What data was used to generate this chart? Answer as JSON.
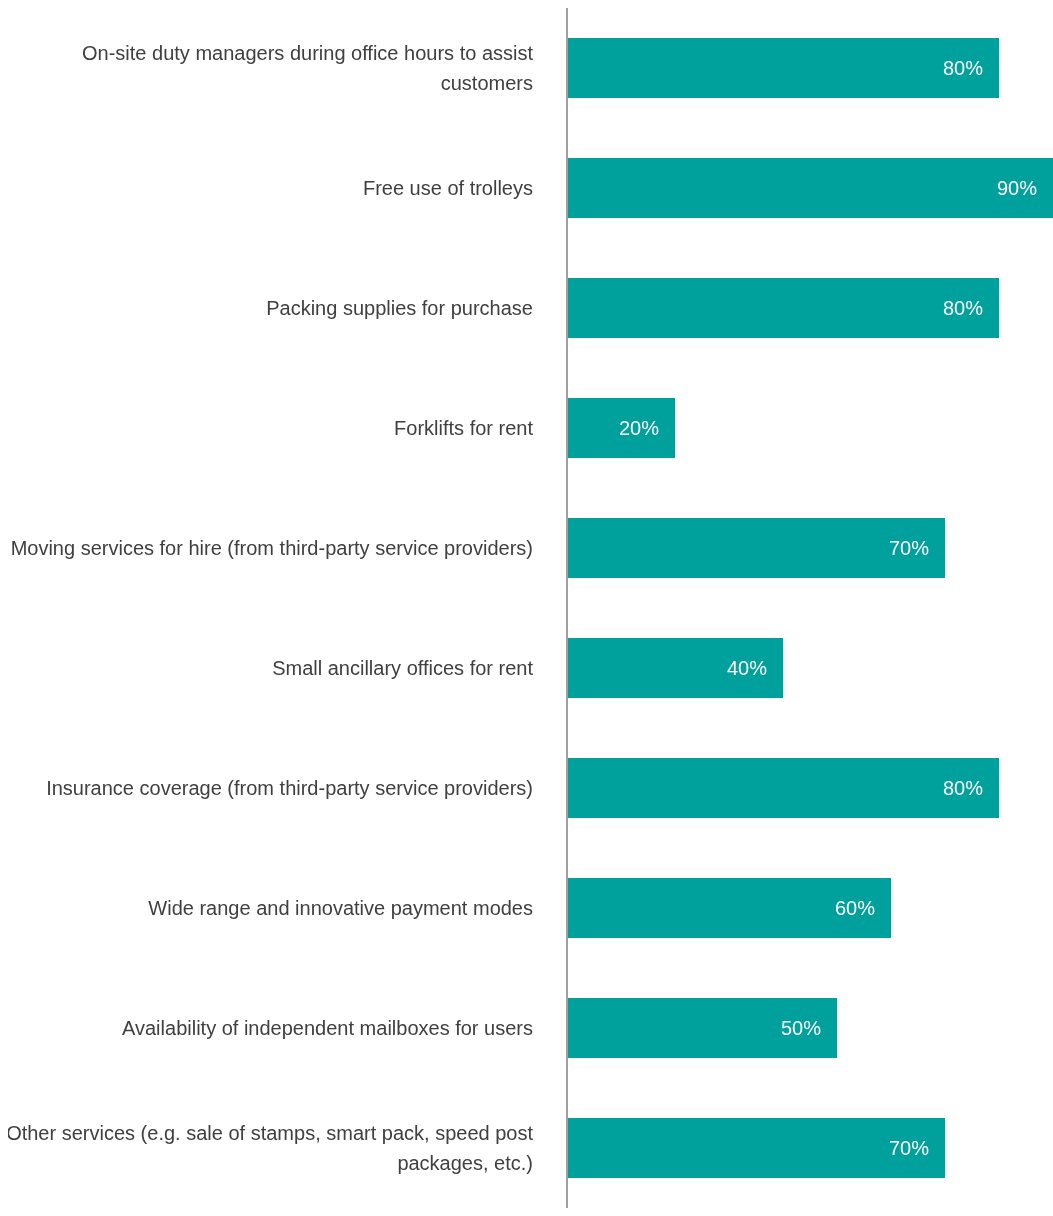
{
  "chart_data": {
    "type": "bar",
    "orientation": "horizontal",
    "categories": [
      "On-site duty managers during office hours to assist customers",
      "Free use of trolleys",
      "Packing supplies for purchase",
      "Forklifts for rent",
      "Moving services for hire (from third-party service providers)",
      "Small ancillary offices for rent",
      "Insurance coverage (from third-party service providers)",
      "Wide range and innovative payment modes",
      "Availability of independent mailboxes for users",
      "Other services (e.g. sale of stamps, smart pack, speed post packages, etc.)"
    ],
    "values": [
      80,
      90,
      80,
      20,
      70,
      40,
      80,
      60,
      50,
      70
    ],
    "value_labels": [
      "80%",
      "90%",
      "80%",
      "20%",
      "70%",
      "40%",
      "80%",
      "60%",
      "50%",
      "70%"
    ],
    "color": "#00a09d",
    "legend": false,
    "grid": false
  }
}
